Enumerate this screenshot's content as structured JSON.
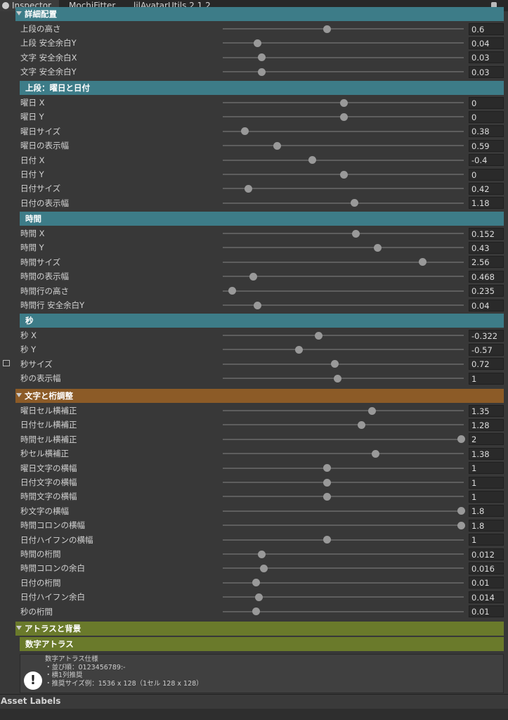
{
  "tabs": [
    "Inspector",
    "MochiFitter",
    "lilAvatarUtils 2.1.2"
  ],
  "sections": [
    {
      "title": "詳細配置",
      "rows": [
        {
          "label": "上段の高さ",
          "value": 0.6
        },
        {
          "label": "上段 安全余白Y",
          "value": 0.04
        },
        {
          "label": "文字 安全余白X",
          "value": 0.03
        },
        {
          "label": "文字 安全余白Y",
          "value": 0.03
        }
      ]
    },
    {
      "title": "上段：曜日と日付",
      "rows": [
        {
          "label": "曜日 X",
          "value": 0
        },
        {
          "label": "曜日 Y",
          "value": 0
        },
        {
          "label": "曜日サイズ",
          "value": 0.38
        },
        {
          "label": "曜日の表示幅",
          "value": 0.59
        },
        {
          "label": "日付 X",
          "value": -0.4
        },
        {
          "label": "日付 Y",
          "value": 0
        },
        {
          "label": "日付サイズ",
          "value": 0.42
        },
        {
          "label": "日付の表示幅",
          "value": 1.18
        }
      ]
    },
    {
      "title": "時間",
      "rows": [
        {
          "label": "時間 X",
          "value": 0.152
        },
        {
          "label": "時間 Y",
          "value": 0.43
        },
        {
          "label": "時間サイズ",
          "value": 2.56
        },
        {
          "label": "時間の表示幅",
          "value": 0.468
        },
        {
          "label": "時間行の高さ",
          "value": 0.235
        },
        {
          "label": "時間行 安全余白Y",
          "value": 0.04
        }
      ]
    },
    {
      "title": "秒",
      "rows": [
        {
          "label": "秒 X",
          "value": -0.322
        },
        {
          "label": "秒 Y",
          "value": -0.57
        },
        {
          "label": "秒サイズ",
          "value": 0.72
        },
        {
          "label": "秒の表示幅",
          "value": 1
        }
      ]
    },
    {
      "title": "文字と桁調整",
      "rows": [
        {
          "label": "曜日セル横補正",
          "value": 1.35
        },
        {
          "label": "日付セル横補正",
          "value": 1.28
        },
        {
          "label": "時間セル横補正",
          "value": 2
        },
        {
          "label": "秒セル横補正",
          "value": 1.38
        },
        {
          "label": "曜日文字の横幅",
          "value": 1
        },
        {
          "label": "日付文字の横幅",
          "value": 1
        },
        {
          "label": "時間文字の横幅",
          "value": 1
        },
        {
          "label": "秒文字の横幅",
          "value": 1.8
        },
        {
          "label": "時間コロンの横幅",
          "value": 1.8
        },
        {
          "label": "日付ハイフンの横幅",
          "value": 1
        },
        {
          "label": "時間の桁間",
          "value": 0.012
        },
        {
          "label": "時間コロンの余白",
          "value": 0.016
        },
        {
          "label": "日付の桁間",
          "value": 0.01
        },
        {
          "label": "日付ハイフン余白",
          "value": 0.014
        },
        {
          "label": "秒の桁間",
          "value": 0.01
        }
      ]
    },
    {
      "title": "アトラスと背景",
      "rows": []
    },
    {
      "title": "数字アトラス",
      "rows": []
    }
  ],
  "help": {
    "lines": [
      "数字アトラス仕様",
      "・並び順：0123456789:-",
      "・横1列推奨",
      "・推奨サイズ例：1536 x 128（1セル 128 x 128）"
    ]
  },
  "footer": "Asset Labels"
}
